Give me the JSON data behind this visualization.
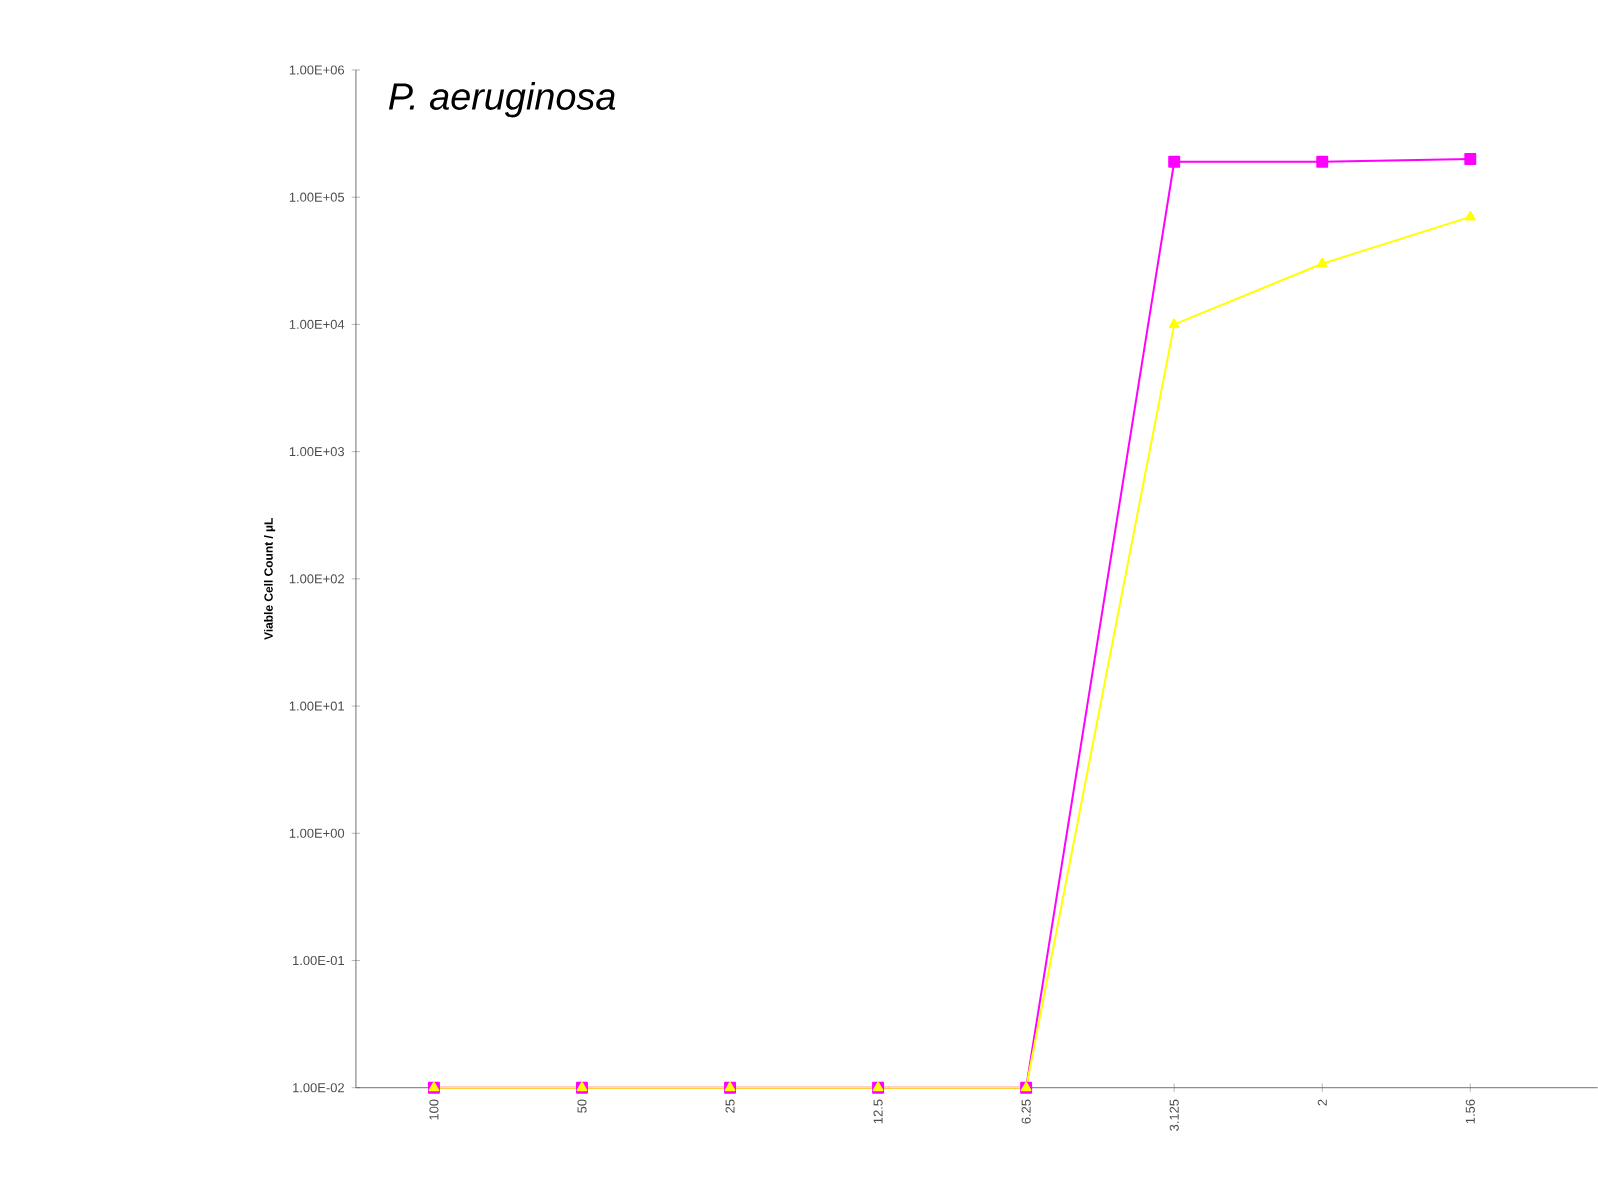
{
  "chart_data": {
    "type": "line",
    "title": "P. aeruginosa",
    "ylabel": "Viable Cell Count / µL",
    "log": "y",
    "grid": false,
    "categories": [
      "100",
      "50",
      "25",
      "12.5",
      "6.25",
      "3.125",
      "2",
      "1.56"
    ],
    "ylim": [
      0.01,
      1000000
    ],
    "yticks": [
      {
        "value": 0.01,
        "label": "1.00E-02"
      },
      {
        "value": 0.1,
        "label": "1.00E-01"
      },
      {
        "value": 1,
        "label": "1.00E+00"
      },
      {
        "value": 10,
        "label": "1.00E+01"
      },
      {
        "value": 100,
        "label": "1.00E+02"
      },
      {
        "value": 1000,
        "label": "1.00E+03"
      },
      {
        "value": 10000,
        "label": "1.00E+04"
      },
      {
        "value": 100000,
        "label": "1.00E+05"
      },
      {
        "value": 1000000,
        "label": "1.00E+06"
      }
    ],
    "series": [
      {
        "color": "#ff00ff",
        "marker": "square",
        "values": [
          0.01,
          0.01,
          0.01,
          0.01,
          0.01,
          190000,
          190000,
          200000
        ]
      },
      {
        "color": "#ffff00",
        "marker": "triangle",
        "values": [
          0.01,
          0.01,
          0.01,
          0.01,
          0.01,
          10000,
          30000,
          70000
        ]
      }
    ]
  }
}
